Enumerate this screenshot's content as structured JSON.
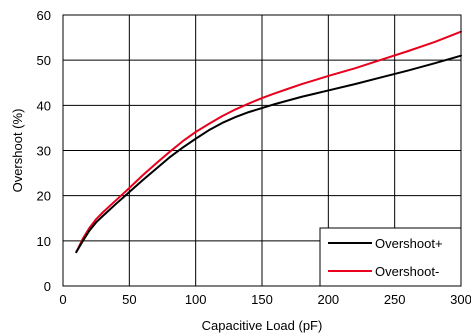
{
  "chart_data": {
    "type": "line",
    "xlabel": "Capacitive Load (pF)",
    "ylabel": "Overshoot (%)",
    "xlim": [
      0,
      300
    ],
    "ylim": [
      0,
      60
    ],
    "xticks": [
      "0",
      "50",
      "100",
      "150",
      "200",
      "250",
      "300"
    ],
    "yticks": [
      "0",
      "10",
      "20",
      "30",
      "40",
      "50",
      "60"
    ],
    "grid": true,
    "legend_position": "bottom-right",
    "series": [
      {
        "name": "Overshoot+",
        "color": "#000000",
        "x": [
          10,
          15,
          20,
          25,
          30,
          40,
          50,
          60,
          70,
          80,
          90,
          100,
          110,
          120,
          130,
          140,
          150,
          160,
          170,
          180,
          190,
          200,
          220,
          240,
          260,
          280,
          300
        ],
        "y": [
          7.5,
          10.0,
          12.3,
          14.1,
          15.5,
          18.2,
          20.8,
          23.4,
          25.9,
          28.4,
          30.6,
          32.6,
          34.5,
          36.1,
          37.4,
          38.5,
          39.4,
          40.3,
          41.1,
          41.9,
          42.6,
          43.3,
          44.7,
          46.2,
          47.7,
          49.3,
          51.0
        ]
      },
      {
        "name": "Overshoot-",
        "color": "#e8001c",
        "x": [
          10,
          15,
          20,
          25,
          30,
          40,
          50,
          60,
          70,
          80,
          90,
          100,
          110,
          120,
          130,
          140,
          150,
          160,
          170,
          180,
          190,
          200,
          220,
          240,
          260,
          280,
          300
        ],
        "y": [
          7.5,
          10.5,
          12.9,
          14.8,
          16.3,
          19.0,
          21.7,
          24.5,
          27.1,
          29.6,
          32.0,
          34.1,
          35.9,
          37.6,
          39.1,
          40.4,
          41.6,
          42.7,
          43.7,
          44.7,
          45.6,
          46.5,
          48.2,
          50.1,
          52.0,
          54.0,
          56.3
        ]
      }
    ]
  }
}
